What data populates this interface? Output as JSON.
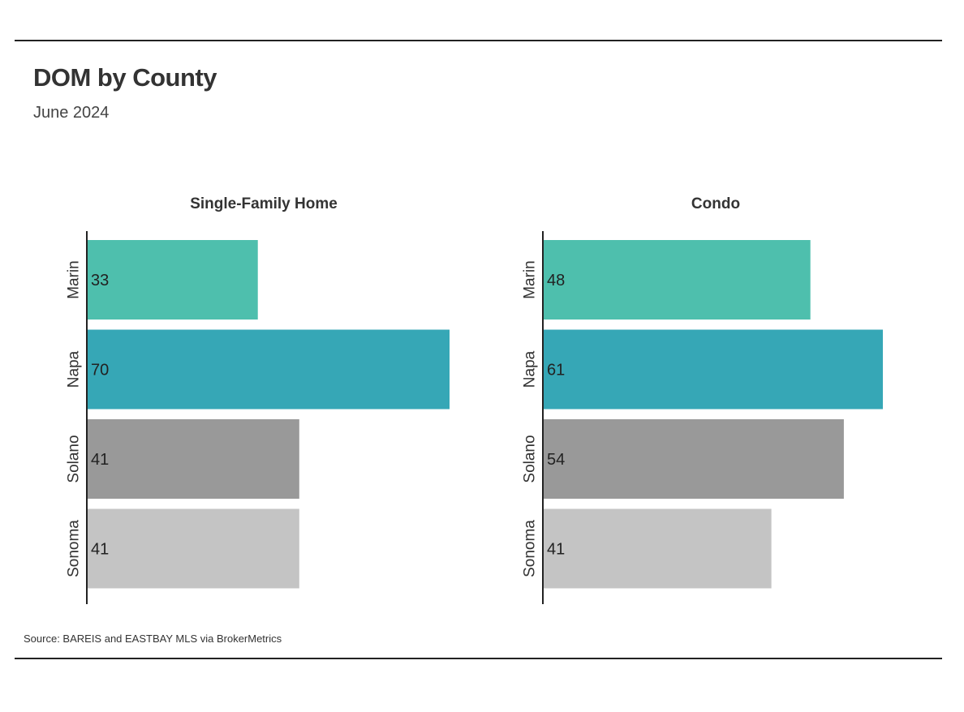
{
  "header": {
    "title": "DOM by County",
    "subtitle": "June 2024"
  },
  "footer": {
    "source": "Source:  BAREIS and EASTBAY MLS via BrokerMetrics"
  },
  "chart_data": [
    {
      "type": "bar",
      "orientation": "horizontal",
      "title": "Single-Family Home",
      "categories": [
        "Marin",
        "Napa",
        "Solano",
        "Sonoma"
      ],
      "values": [
        33,
        70,
        41,
        41
      ],
      "colors": [
        "#4ebfad",
        "#36a7b6",
        "#999999",
        "#c4c4c4"
      ],
      "xlim": [
        0,
        75
      ],
      "grid": false,
      "data_labels": true
    },
    {
      "type": "bar",
      "orientation": "horizontal",
      "title": "Condo",
      "categories": [
        "Marin",
        "Napa",
        "Solano",
        "Sonoma"
      ],
      "values": [
        48,
        61,
        54,
        41
      ],
      "colors": [
        "#4ebfad",
        "#36a7b6",
        "#999999",
        "#c4c4c4"
      ],
      "xlim": [
        0,
        65
      ],
      "grid": false,
      "data_labels": true
    }
  ]
}
